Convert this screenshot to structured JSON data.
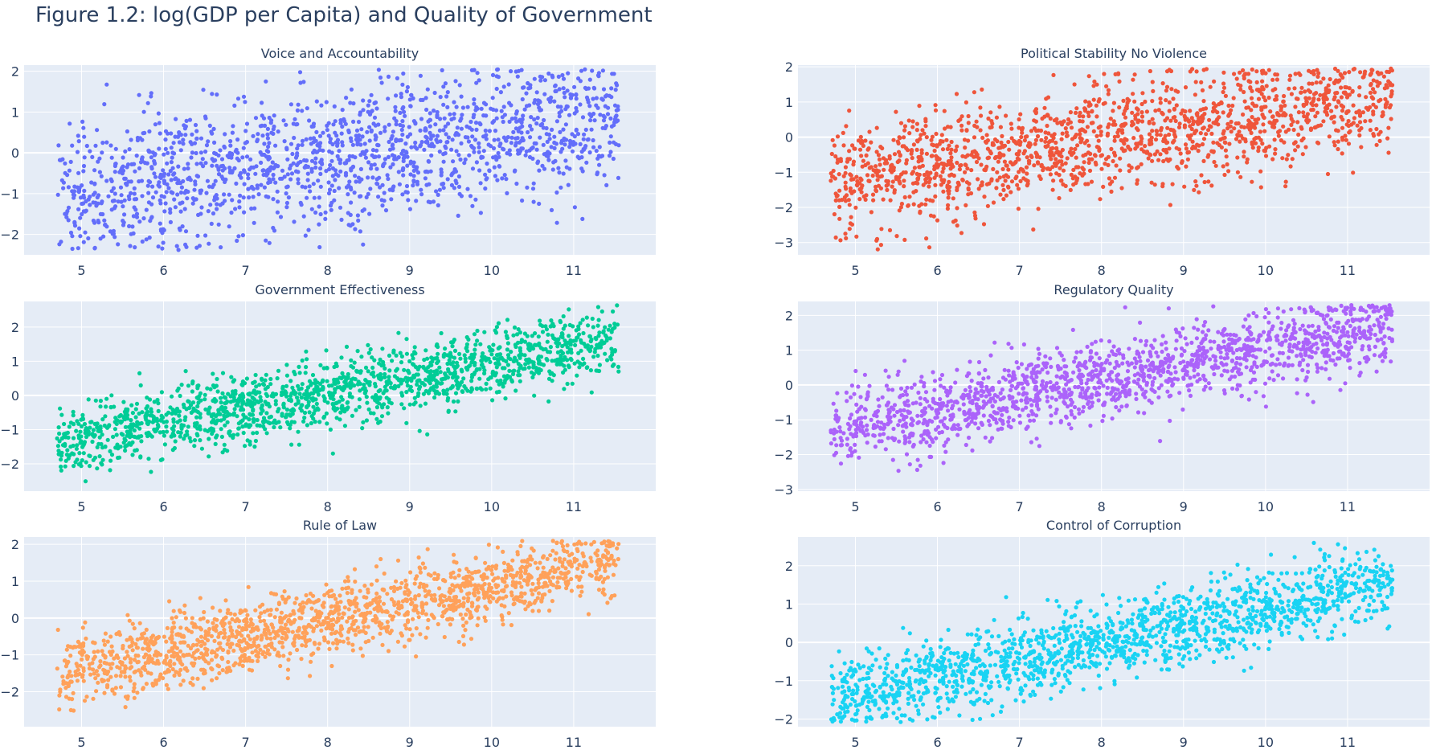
{
  "figure": {
    "title": "Figure 1.2: log(GDP per Capita) and Quality of Government"
  },
  "chart_data": [
    {
      "type": "scatter",
      "title": "Voice and Accountability",
      "color": "#636efa",
      "xlabel": "",
      "ylabel": "",
      "xlim": [
        4.3,
        12.0
      ],
      "ylim": [
        -2.5,
        2.15
      ],
      "xticks": [
        5,
        6,
        7,
        8,
        9,
        10,
        11
      ],
      "yticks": [
        -2,
        -1,
        0,
        1,
        2
      ],
      "trend": {
        "slope": 0.3,
        "intercept": -2.55,
        "spread": 0.85
      },
      "n_points": 1600,
      "seed": 11
    },
    {
      "type": "scatter",
      "title": "Political Stability No Violence",
      "color": "#ef553b",
      "xlabel": "",
      "ylabel": "",
      "xlim": [
        4.3,
        12.0
      ],
      "ylim": [
        -3.35,
        2.05
      ],
      "xticks": [
        5,
        6,
        7,
        8,
        9,
        10,
        11
      ],
      "yticks": [
        -3,
        -2,
        -1,
        0,
        1,
        2
      ],
      "trend": {
        "slope": 0.35,
        "intercept": -2.9,
        "spread": 0.75
      },
      "n_points": 1600,
      "seed": 23
    },
    {
      "type": "scatter",
      "title": "Government Effectiveness",
      "color": "#00cc96",
      "xlabel": "",
      "ylabel": "",
      "xlim": [
        4.3,
        12.0
      ],
      "ylim": [
        -2.8,
        2.75
      ],
      "xticks": [
        5,
        6,
        7,
        8,
        9,
        10,
        11
      ],
      "yticks": [
        -2,
        -1,
        0,
        1,
        2
      ],
      "trend": {
        "slope": 0.45,
        "intercept": -3.55,
        "spread": 0.5
      },
      "n_points": 1600,
      "seed": 37
    },
    {
      "type": "scatter",
      "title": "Regulatory Quality",
      "color": "#ab63fa",
      "xlabel": "",
      "ylabel": "",
      "xlim": [
        4.3,
        12.0
      ],
      "ylim": [
        -3.05,
        2.4
      ],
      "xticks": [
        5,
        6,
        7,
        8,
        9,
        10,
        11
      ],
      "yticks": [
        -3,
        -2,
        -1,
        0,
        1,
        2
      ],
      "trend": {
        "slope": 0.45,
        "intercept": -3.45,
        "spread": 0.55
      },
      "n_points": 1600,
      "seed": 41
    },
    {
      "type": "scatter",
      "title": "Rule of Law",
      "color": "#ffa15a",
      "xlabel": "",
      "ylabel": "",
      "xlim": [
        4.3,
        12.0
      ],
      "ylim": [
        -2.95,
        2.2
      ],
      "xticks": [
        5,
        6,
        7,
        8,
        9,
        10,
        11
      ],
      "yticks": [
        -2,
        -1,
        0,
        1,
        2
      ],
      "trend": {
        "slope": 0.45,
        "intercept": -3.65,
        "spread": 0.5
      },
      "n_points": 1600,
      "seed": 53
    },
    {
      "type": "scatter",
      "title": "Control of Corruption",
      "color": "#19d3f3",
      "xlabel": "",
      "ylabel": "",
      "xlim": [
        4.3,
        12.0
      ],
      "ylim": [
        -2.2,
        2.75
      ],
      "xticks": [
        5,
        6,
        7,
        8,
        9,
        10,
        11
      ],
      "yticks": [
        -2,
        -1,
        0,
        1,
        2
      ],
      "trend": {
        "slope": 0.45,
        "intercept": -3.6,
        "spread": 0.5
      },
      "n_points": 1600,
      "seed": 67
    }
  ]
}
